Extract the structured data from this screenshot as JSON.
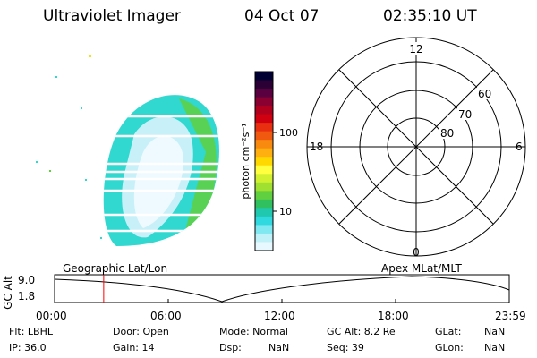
{
  "header": {
    "title": "Ultraviolet Imager",
    "date": "04 Oct 07",
    "time": "02:35:10 UT"
  },
  "image_panel": {
    "label": "Geographic Lat/Lon"
  },
  "colorbar": {
    "unit_label": "photon cm⁻²s⁻¹",
    "tick_labels": [
      "100",
      "10"
    ],
    "colors": [
      "#000033",
      "#2a0035",
      "#5a0040",
      "#8a0030",
      "#b0001e",
      "#d00010",
      "#e83010",
      "#f05a10",
      "#f88a10",
      "#ffb010",
      "#ffd800",
      "#ffff40",
      "#d0f030",
      "#a0e030",
      "#60d040",
      "#30c060",
      "#20c8b0",
      "#30d8e0",
      "#80e8f0",
      "#c0f0f8",
      "#e8f8ff"
    ]
  },
  "polar_plot": {
    "label": "Apex MLat/MLT",
    "mlt_labels": [
      "12",
      "18",
      "6",
      "0"
    ],
    "mlat_labels": [
      "60",
      "70",
      "80"
    ]
  },
  "timeline": {
    "ylabel": "GC Alt",
    "ytick_labels": [
      "9.0",
      "1.8"
    ],
    "xtick_labels": [
      "00:00",
      "06:00",
      "12:00",
      "18:00",
      "23:59"
    ],
    "current_time_fraction": 0.108
  },
  "status": {
    "filter": "Flt: LBHL",
    "ip": "IP: 36.0",
    "door": "Door: Open",
    "gain": "Gain: 14",
    "mode": "Mode: Normal",
    "dsp_label": "Dsp:",
    "dsp_value": "NaN",
    "gc_alt": "GC Alt: 8.2 Re",
    "seq": "Seq: 39",
    "glat_label": "GLat:",
    "glat_value": "NaN",
    "glon_label": "GLon:",
    "glon_value": "NaN"
  },
  "colors": {
    "time_marker": "#ff0000"
  }
}
